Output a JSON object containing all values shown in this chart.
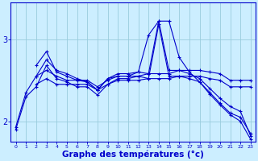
{
  "background_color": "#cceeff",
  "grid_color": "#99ccdd",
  "line_color": "#0000cc",
  "xlabel": "Graphe des températures (°c)",
  "xlabel_fontsize": 7.5,
  "yticks": [
    2,
    3
  ],
  "ylim": [
    1.75,
    3.45
  ],
  "xlim": [
    -0.5,
    23.5
  ],
  "xtick_labels": [
    "0",
    "1",
    "2",
    "3",
    "4",
    "5",
    "6",
    "7",
    "8",
    "9",
    "10",
    "11",
    "12",
    "13",
    "14",
    "15",
    "16",
    "17",
    "18",
    "19",
    "20",
    "21",
    "22",
    "23"
  ],
  "series": [
    {
      "x": [
        0,
        1,
        2,
        3,
        4,
        5,
        6,
        7,
        8,
        9,
        10,
        11,
        12,
        13,
        14,
        15,
        16,
        17,
        18,
        19,
        20,
        21,
        22,
        23
      ],
      "y": [
        1.93,
        2.35,
        2.55,
        2.75,
        2.62,
        2.58,
        2.52,
        2.48,
        2.38,
        2.52,
        2.58,
        2.58,
        2.6,
        2.58,
        3.22,
        2.62,
        2.62,
        2.62,
        2.62,
        2.6,
        2.58,
        2.5,
        2.5,
        2.5
      ]
    },
    {
      "x": [
        2,
        3,
        4,
        5,
        6,
        7,
        8,
        9,
        10,
        11,
        12,
        13,
        14,
        15,
        16,
        17,
        18,
        19,
        20,
        21,
        22,
        23
      ],
      "y": [
        2.68,
        2.85,
        2.6,
        2.55,
        2.5,
        2.48,
        2.38,
        2.52,
        2.55,
        2.55,
        2.6,
        3.05,
        3.22,
        3.22,
        2.78,
        2.6,
        2.48,
        2.35,
        2.22,
        2.1,
        2.05,
        1.85
      ]
    },
    {
      "x": [
        2,
        3,
        4,
        5,
        6,
        7,
        8,
        9,
        10,
        11,
        12,
        13,
        14,
        15,
        16,
        17,
        18,
        19,
        20,
        21,
        22,
        23
      ],
      "y": [
        2.55,
        2.62,
        2.55,
        2.5,
        2.5,
        2.5,
        2.42,
        2.5,
        2.55,
        2.55,
        2.55,
        2.58,
        2.58,
        2.58,
        2.62,
        2.58,
        2.52,
        2.4,
        2.28,
        2.18,
        2.12,
        1.82
      ]
    },
    {
      "x": [
        2,
        3,
        4,
        5,
        6,
        7,
        8,
        9,
        10,
        11,
        12,
        13,
        14,
        15,
        16,
        17,
        18,
        19,
        20,
        21,
        22,
        23
      ],
      "y": [
        2.45,
        2.52,
        2.45,
        2.45,
        2.45,
        2.45,
        2.38,
        2.45,
        2.5,
        2.5,
        2.5,
        2.52,
        2.52,
        2.52,
        2.55,
        2.52,
        2.48,
        2.33,
        2.2,
        2.08,
        2.0,
        1.78
      ]
    },
    {
      "x": [
        0,
        1,
        2,
        3,
        4,
        5,
        6,
        7,
        8,
        9,
        10,
        11,
        12,
        13,
        14,
        15,
        16,
        17,
        18,
        19,
        20,
        21,
        22,
        23
      ],
      "y": [
        1.9,
        2.3,
        2.42,
        2.68,
        2.52,
        2.48,
        2.42,
        2.42,
        2.32,
        2.45,
        2.52,
        2.52,
        2.55,
        2.52,
        3.18,
        2.55,
        2.55,
        2.55,
        2.55,
        2.52,
        2.5,
        2.42,
        2.42,
        2.42
      ]
    }
  ]
}
